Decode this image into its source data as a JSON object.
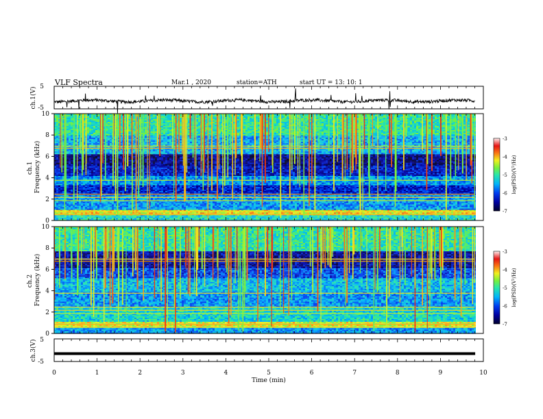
{
  "header": {
    "title": "VLF Spectra",
    "date": "Mar.1  , 2020",
    "station": "station=ATH",
    "start": "start  UT  =   13: 10: 1"
  },
  "chart_data": [
    {
      "type": "line",
      "panel": "ch1-waveform",
      "ylabel": "ch.1(V)",
      "ylim": [
        -5,
        5
      ],
      "yticks": [
        "5",
        "-5"
      ],
      "xlim": [
        0,
        10
      ],
      "baseline": -1.5,
      "line_color": "#000000"
    },
    {
      "type": "heatmap",
      "panel": "ch1-spectrogram",
      "ylabel": "ch.1  Frequency  (kHz)",
      "ylim": [
        0,
        10
      ],
      "yticks": [
        "0",
        "2",
        "4",
        "6",
        "8",
        "10"
      ],
      "xlim": [
        0,
        9.8
      ],
      "colorbar": {
        "label": "log(PSD)(V²/Hz)",
        "range": [
          -7,
          -3
        ],
        "ticks": [
          "-3",
          "-4",
          "-5",
          "-6",
          "-7"
        ]
      },
      "bands_khz": [
        {
          "from": 0.0,
          "to": 0.5,
          "level": -5.2
        },
        {
          "from": 0.5,
          "to": 1.0,
          "level": -4.2
        },
        {
          "from": 1.0,
          "to": 2.4,
          "level": -5.6
        },
        {
          "from": 2.4,
          "to": 3.4,
          "level": -6.2
        },
        {
          "from": 3.4,
          "to": 4.2,
          "level": -5.6
        },
        {
          "from": 4.2,
          "to": 5.2,
          "level": -6.3
        },
        {
          "from": 5.2,
          "to": 6.3,
          "level": -6.6
        },
        {
          "from": 6.3,
          "to": 8.0,
          "level": -5.5
        },
        {
          "from": 8.0,
          "to": 10.0,
          "level": -5.0
        }
      ]
    },
    {
      "type": "heatmap",
      "panel": "ch2-spectrogram",
      "ylabel": "ch.2  Frequency  (kHz)",
      "ylim": [
        0,
        10
      ],
      "yticks": [
        "0",
        "2",
        "4",
        "6",
        "8",
        "10"
      ],
      "xlim": [
        0,
        9.8
      ],
      "colorbar": {
        "label": "log(PSD)(V²/Hz)",
        "range": [
          -7,
          -3
        ],
        "ticks": [
          "-3",
          "-4",
          "-5",
          "-6",
          "-7"
        ]
      },
      "bands_khz": [
        {
          "from": 0.0,
          "to": 0.6,
          "level": -5.6
        },
        {
          "from": 0.6,
          "to": 1.2,
          "level": -4.3
        },
        {
          "from": 1.2,
          "to": 2.5,
          "level": -5.2
        },
        {
          "from": 2.5,
          "to": 4.0,
          "level": -5.6
        },
        {
          "from": 4.0,
          "to": 5.2,
          "level": -5.4
        },
        {
          "from": 5.2,
          "to": 6.2,
          "level": -6.0
        },
        {
          "from": 6.2,
          "to": 7.8,
          "level": -6.5
        },
        {
          "from": 7.8,
          "to": 10.0,
          "level": -5.0
        }
      ]
    },
    {
      "type": "line",
      "panel": "ch3-waveform",
      "ylabel": "ch.3(V)",
      "ylim": [
        -5,
        5
      ],
      "yticks": [
        "5",
        "-5"
      ],
      "xlim": [
        0,
        10
      ],
      "baseline": -1.5,
      "line_color": "#000000"
    }
  ],
  "xaxis": {
    "label": "Time  (min)",
    "range": [
      0,
      10
    ],
    "ticks": [
      "0",
      "1",
      "2",
      "3",
      "4",
      "5",
      "6",
      "7",
      "8",
      "9",
      "10"
    ]
  }
}
